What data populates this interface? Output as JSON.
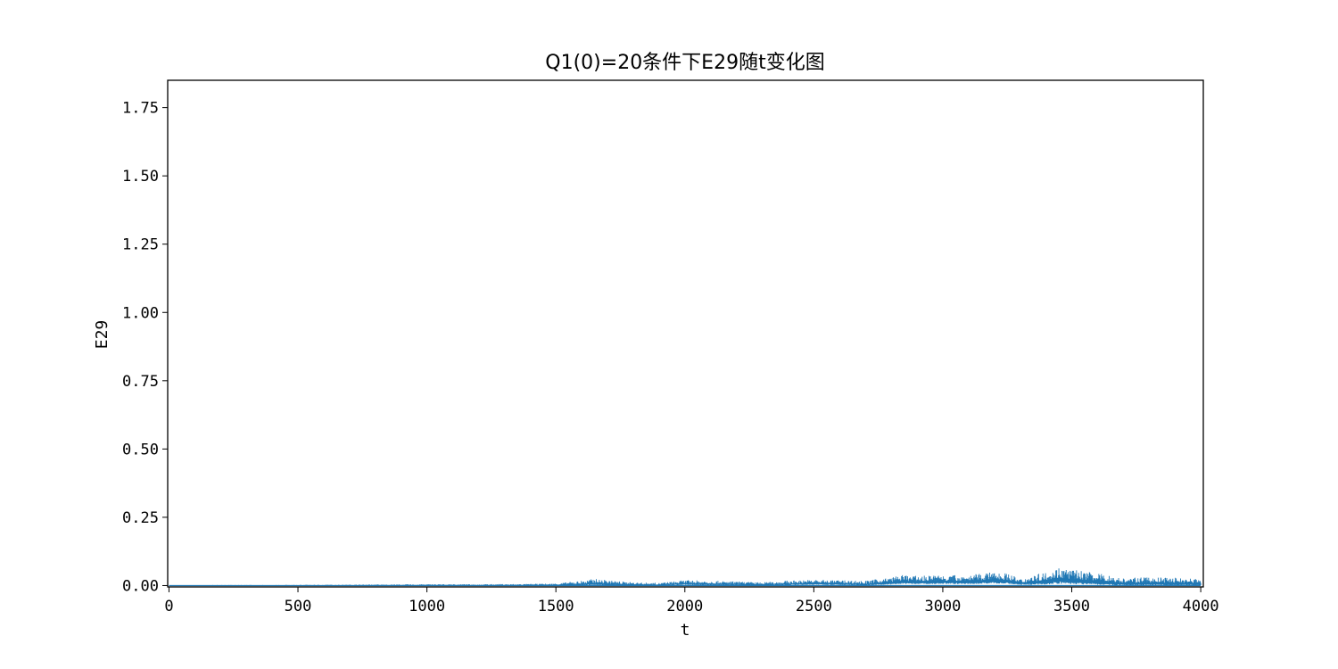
{
  "chart_data": {
    "type": "line",
    "title": "Q1(0)=20条件下E29随t变化图",
    "xlabel": "t",
    "ylabel": "E29",
    "xlim": [
      -5,
      4010
    ],
    "ylim": [
      -0.005,
      1.85
    ],
    "xticks": [
      0,
      500,
      1000,
      1500,
      2000,
      2500,
      3000,
      3500,
      4000
    ],
    "xtick_labels": [
      "0",
      "500",
      "1000",
      "1500",
      "2000",
      "2500",
      "3000",
      "3500",
      "4000"
    ],
    "yticks": [
      0.0,
      0.25,
      0.5,
      0.75,
      1.0,
      1.25,
      1.5,
      1.75
    ],
    "ytick_labels": [
      "0.00",
      "0.25",
      "0.50",
      "0.75",
      "1.00",
      "1.25",
      "1.50",
      "1.75"
    ],
    "grid": false,
    "color": "#1f77b4",
    "series": [
      {
        "x": [
          0,
          200,
          400,
          600,
          800,
          1000,
          1200,
          1400,
          1500,
          1600,
          1650,
          1700,
          1800,
          1900,
          2000,
          2100,
          2200,
          2300,
          2400,
          2500,
          2600,
          2700,
          2800,
          2850,
          2900,
          3000,
          3100,
          3200,
          3250,
          3300,
          3400,
          3450,
          3500,
          3600,
          3700,
          3800,
          3900,
          4000
        ],
        "y_max": [
          0.001,
          0.002,
          0.002,
          0.003,
          0.004,
          0.005,
          0.005,
          0.006,
          0.008,
          0.018,
          0.025,
          0.02,
          0.012,
          0.01,
          0.02,
          0.018,
          0.015,
          0.012,
          0.018,
          0.022,
          0.02,
          0.018,
          0.03,
          0.04,
          0.035,
          0.04,
          0.038,
          0.05,
          0.045,
          0.025,
          0.05,
          0.07,
          0.06,
          0.045,
          0.028,
          0.03,
          0.03,
          0.025
        ],
        "y_min": [
          0.0,
          0.0,
          0.0,
          0.0,
          0.0,
          0.0,
          0.0,
          0.0,
          0.0,
          0.0,
          0.002,
          0.0,
          0.0,
          0.0,
          0.002,
          0.001,
          0.001,
          0.0,
          0.001,
          0.003,
          0.002,
          0.0,
          0.004,
          0.006,
          0.005,
          0.006,
          0.005,
          0.008,
          0.006,
          0.002,
          0.004,
          0.006,
          0.005,
          0.003,
          0.0,
          0.001,
          0.0,
          0.0
        ]
      }
    ]
  }
}
